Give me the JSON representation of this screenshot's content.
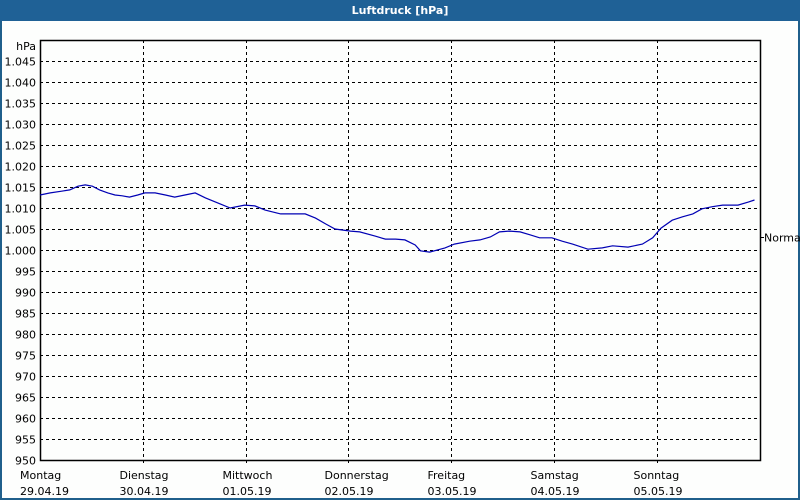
{
  "window": {
    "title": "Luftdruck [hPa]",
    "border_color": "#1f5f8b",
    "titlebar_color": "#1f6196"
  },
  "chart_data": {
    "type": "line",
    "title": "Luftdruck [hPa]",
    "xlabel": "",
    "ylabel": "hPa",
    "ylim": [
      950,
      1050
    ],
    "yticks": [
      "1.045",
      "1.040",
      "1.035",
      "1.030",
      "1.025",
      "1.020",
      "1.015",
      "1.010",
      "1.005",
      "1.000",
      "995",
      "990",
      "985",
      "980",
      "975",
      "970",
      "965",
      "960",
      "955",
      "950"
    ],
    "ytick_values": [
      1045,
      1040,
      1035,
      1030,
      1025,
      1020,
      1015,
      1010,
      1005,
      1000,
      995,
      990,
      985,
      980,
      975,
      970,
      965,
      960,
      955,
      950
    ],
    "categories": [
      {
        "day": "Montag",
        "date": "29.04.19"
      },
      {
        "day": "Dienstag",
        "date": "30.04.19"
      },
      {
        "day": "Mittwoch",
        "date": "01.05.19"
      },
      {
        "day": "Donnerstag",
        "date": "02.05.19"
      },
      {
        "day": "Freitag",
        "date": "03.05.19"
      },
      {
        "day": "Samstag",
        "date": "04.05.19"
      },
      {
        "day": "Sonntag",
        "date": "05.05.19"
      }
    ],
    "grid": true,
    "grid_style": "dashed",
    "reference_line": {
      "label": "Normal",
      "value": 1003.1
    },
    "series": [
      {
        "name": "Luftdruck",
        "color": "#0000b4",
        "x_days": [
          0.0,
          0.1,
          0.21,
          0.29,
          0.37,
          0.44,
          0.51,
          0.58,
          0.66,
          0.73,
          0.8,
          0.87,
          0.95,
          1.02,
          1.12,
          1.22,
          1.31,
          1.41,
          1.51,
          1.61,
          1.75,
          1.75,
          1.85,
          1.99,
          2.09,
          2.19,
          2.34,
          2.48,
          2.58,
          2.68,
          2.78,
          2.87,
          3.02,
          3.11,
          3.26,
          3.36,
          3.46,
          3.55,
          3.65,
          3.7,
          3.79,
          3.94,
          4.03,
          4.18,
          4.28,
          4.38,
          4.47,
          4.57,
          4.67,
          4.77,
          4.86,
          4.98,
          5.08,
          5.18,
          5.33,
          5.47,
          5.57,
          5.72,
          5.86,
          5.96,
          6.04,
          6.15,
          6.25,
          6.35,
          6.44,
          6.54,
          6.64,
          6.79,
          6.89,
          6.95
        ],
        "values": [
          1013.1,
          1013.6,
          1014.0,
          1014.3,
          1015.2,
          1015.5,
          1015.2,
          1014.3,
          1013.6,
          1013.1,
          1012.9,
          1012.6,
          1013.1,
          1013.6,
          1013.6,
          1013.1,
          1012.6,
          1013.1,
          1013.6,
          1012.4,
          1011.0,
          1011.0,
          1010.0,
          1010.7,
          1010.5,
          1009.5,
          1008.6,
          1008.6,
          1008.6,
          1007.6,
          1006.2,
          1005.0,
          1004.5,
          1004.3,
          1003.3,
          1002.6,
          1002.6,
          1002.4,
          1001.2,
          999.8,
          999.5,
          1000.5,
          1001.4,
          1002.1,
          1002.4,
          1003.1,
          1004.3,
          1004.5,
          1004.3,
          1003.6,
          1002.9,
          1002.9,
          1002.1,
          1001.4,
          1000.2,
          1000.5,
          1001.0,
          1000.7,
          1001.4,
          1002.9,
          1005.2,
          1007.1,
          1007.9,
          1008.6,
          1009.8,
          1010.3,
          1010.7,
          1010.7,
          1011.4,
          1011.9
        ]
      }
    ]
  }
}
